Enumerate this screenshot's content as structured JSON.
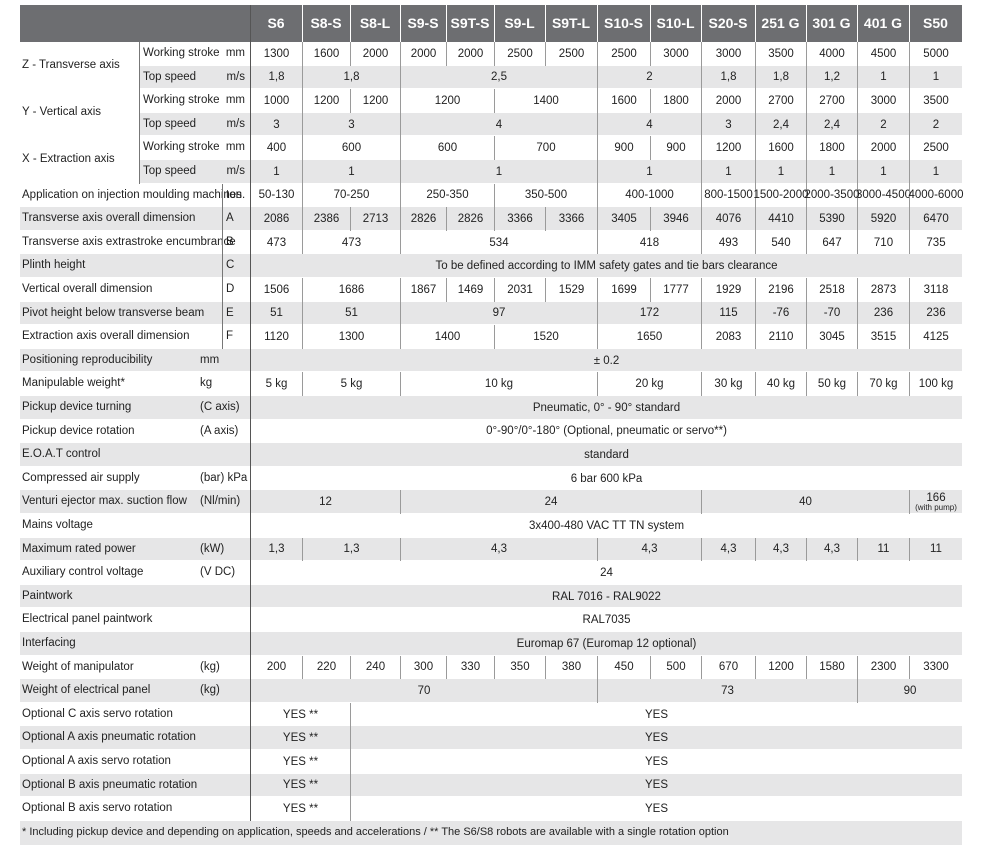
{
  "header": {
    "models": [
      "S6",
      "S8-S",
      "S8-L",
      "S9-S",
      "S9T-S",
      "S9-L",
      "S9T-L",
      "S10-S",
      "S10-L",
      "S20-S",
      "251 G",
      "301 G",
      "401 G",
      "S50"
    ]
  },
  "axes": [
    {
      "label": "Z - Transverse axis",
      "rows": [
        {
          "label": "Working stroke",
          "unit": "mm",
          "values": [
            1300,
            1600,
            2000,
            2000,
            2000,
            2500,
            2500,
            2500,
            3000,
            3000,
            3500,
            4000,
            4500,
            5000
          ]
        },
        {
          "label": "Top speed",
          "unit": "m/s",
          "values": [
            "1,8",
            "1,8",
            "2,5",
            2,
            "1,8",
            "1,8",
            "1,2",
            1,
            1
          ]
        }
      ]
    },
    {
      "label": "Y - Vertical axis",
      "rows": [
        {
          "label": "Working stroke",
          "unit": "mm",
          "values": [
            1000,
            1200,
            1200,
            1200,
            1400,
            1600,
            1800,
            2000,
            2700,
            2700,
            3000,
            3500
          ]
        },
        {
          "label": "Top speed",
          "unit": "m/s",
          "values": [
            3,
            3,
            4,
            4,
            3,
            "2,4",
            "2,4",
            2,
            2
          ]
        }
      ]
    },
    {
      "label": "X - Extraction axis",
      "rows": [
        {
          "label": "Working stroke",
          "unit": "mm",
          "values": [
            400,
            600,
            600,
            700,
            900,
            900,
            1200,
            1600,
            1800,
            2000,
            2500
          ]
        },
        {
          "label": "Top speed",
          "unit": "m/s",
          "values": [
            1,
            1,
            1,
            1,
            1,
            1,
            1,
            1,
            1
          ]
        }
      ]
    }
  ],
  "rows": [
    {
      "label": "Application on injection moulding machines",
      "ref": "ton.",
      "values": [
        "50-130",
        "70-250",
        "250-350",
        "350-500",
        "400-1000",
        "800-1500",
        "1500-2000",
        "2000-3500",
        "3000-4500",
        "4000-6000"
      ]
    },
    {
      "label": "Transverse axis overall dimension",
      "ref": "A",
      "values": [
        2086,
        2386,
        2713,
        2826,
        2826,
        3366,
        3366,
        3405,
        3946,
        4076,
        4410,
        5390,
        5920,
        6470
      ]
    },
    {
      "label": "Transverse axis extrastroke encumbrance",
      "ref": "B",
      "values": [
        473,
        473,
        534,
        418,
        493,
        540,
        647,
        710,
        735
      ]
    },
    {
      "label": "Plinth height",
      "ref": "C",
      "values": [
        "To be defined according to IMM safety gates and tie bars clearance"
      ]
    },
    {
      "label": "Vertical overall dimension",
      "ref": "D",
      "values": [
        1506,
        1686,
        1867,
        1469,
        2031,
        1529,
        1699,
        1777,
        1929,
        2196,
        2518,
        2873,
        3118
      ]
    },
    {
      "label": "Pivot height below transverse beam",
      "ref": "E",
      "values": [
        51,
        51,
        97,
        172,
        115,
        -76,
        -70,
        236,
        236
      ]
    },
    {
      "label": "Extraction axis overall dimension",
      "ref": "F",
      "values": [
        1120,
        1300,
        1400,
        1520,
        1650,
        2083,
        2110,
        3045,
        3515,
        4125
      ]
    },
    {
      "label": "Positioning reproducibility",
      "unit": "mm",
      "values": [
        "± 0.2"
      ]
    },
    {
      "label": "Manipulable weight*",
      "unit": "kg",
      "values": [
        "5 kg",
        "5 kg",
        "10 kg",
        "20 kg",
        "30 kg",
        "40 kg",
        "50 kg",
        "70 kg",
        "100 kg"
      ]
    },
    {
      "label": "Pickup device turning",
      "unit": "(C axis)",
      "values": [
        "Pneumatic, 0° - 90° standard"
      ]
    },
    {
      "label": "Pickup device rotation",
      "unit": "(A axis)",
      "values": [
        "0°-90°/0°-180° (Optional,  pneumatic or servo**)"
      ]
    },
    {
      "label": "E.O.A.T control",
      "values": [
        "standard"
      ]
    },
    {
      "label": "Compressed air supply",
      "unit": "(bar) kPa",
      "values": [
        "6 bar  600 kPa"
      ]
    },
    {
      "label": "Venturi ejector max. suction flow",
      "unit": "(Nl/min)",
      "values": [
        12,
        24,
        40,
        {
          "text": 166,
          "note": "(with pump)"
        }
      ]
    },
    {
      "label": "Mains voltage",
      "values": [
        "3x400-480 VAC TT TN system"
      ]
    },
    {
      "label": "Maximum rated power",
      "unit": "(kW)",
      "values": [
        "1,3",
        "1,3",
        "4,3",
        "4,3",
        "4,3",
        "4,3",
        "4,3",
        11,
        11
      ]
    },
    {
      "label": "Auxiliary control voltage",
      "unit": "(V DC)",
      "values": [
        24
      ]
    },
    {
      "label": "Paintwork",
      "values": [
        "RAL 7016 - RAL9022"
      ]
    },
    {
      "label": "Electrical panel paintwork",
      "values": [
        "RAL7035"
      ]
    },
    {
      "label": "Interfacing",
      "values": [
        "Euromap 67 (Euromap 12 optional)"
      ]
    },
    {
      "label": "Weight of manipulator",
      "unit": "(kg)",
      "values": [
        200,
        220,
        240,
        300,
        330,
        350,
        380,
        450,
        500,
        670,
        1200,
        1580,
        2300,
        3300
      ]
    },
    {
      "label": "Weight of electrical panel",
      "unit": "(kg)",
      "values": [
        70,
        73,
        90
      ]
    },
    {
      "label": "Optional C axis servo rotation",
      "values": [
        "YES **",
        "YES"
      ]
    },
    {
      "label": "Optional A axis pneumatic rotation",
      "values": [
        "YES **",
        "YES"
      ]
    },
    {
      "label": "Optional A axis servo rotation",
      "values": [
        "YES **",
        "YES"
      ]
    },
    {
      "label": "Optional B axis pneumatic rotation",
      "values": [
        "YES **",
        "YES"
      ]
    },
    {
      "label": "Optional B axis servo rotation",
      "values": [
        "YES **",
        "YES"
      ]
    }
  ],
  "footnote": "* Including pickup device and depending on application, speeds and accelerations / ** The S6/S8 robots are available with a single rotation option"
}
